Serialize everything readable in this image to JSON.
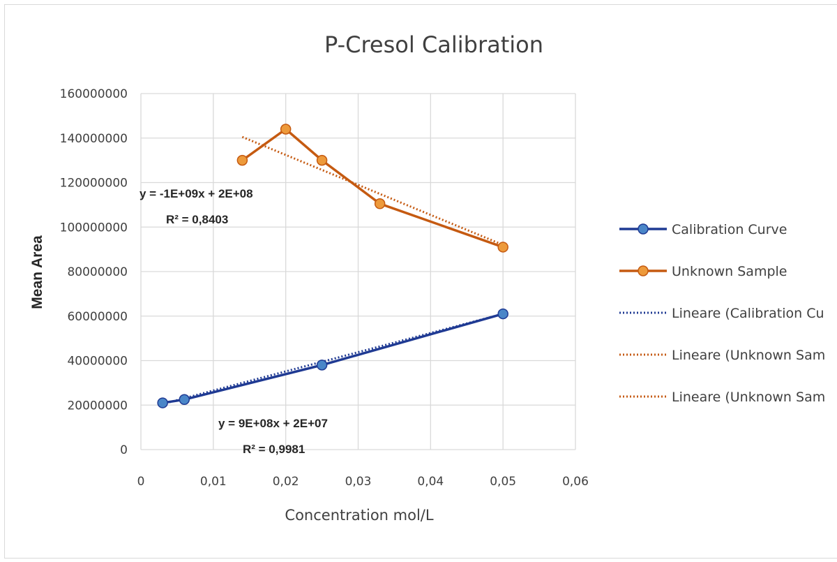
{
  "chart_data": {
    "type": "scatter",
    "title": "P-Cresol Calibration",
    "xlabel": "Concentration mol/L",
    "ylabel": "Mean Area",
    "xlim": [
      0,
      0.06
    ],
    "ylim": [
      0,
      160000000
    ],
    "x_ticks": [
      "0",
      "0,01",
      "0,02",
      "0,03",
      "0,04",
      "0,05",
      "0,06"
    ],
    "y_ticks": [
      "0",
      "20000000",
      "40000000",
      "60000000",
      "80000000",
      "100000000",
      "120000000",
      "140000000",
      "160000000"
    ],
    "grid": true,
    "legend_position": "right",
    "series": [
      {
        "name": "Calibration Curve",
        "color": "#1f3a93",
        "marker_color": "#4a86c8",
        "style": "line-markers",
        "points": [
          {
            "x": 0.003,
            "y": 21000000
          },
          {
            "x": 0.006,
            "y": 22500000
          },
          {
            "x": 0.025,
            "y": 38000000
          },
          {
            "x": 0.05,
            "y": 61000000
          }
        ]
      },
      {
        "name": "Unknown Sample",
        "color": "#c55a11",
        "marker_color": "#ed9a3b",
        "style": "line-markers",
        "points": [
          {
            "x": 0.014,
            "y": 130000000
          },
          {
            "x": 0.02,
            "y": 144000000
          },
          {
            "x": 0.025,
            "y": 130000000
          },
          {
            "x": 0.033,
            "y": 110500000
          },
          {
            "x": 0.05,
            "y": 91000000
          }
        ]
      }
    ],
    "trendlines": [
      {
        "name": "Lineare (Calibration Cu",
        "color": "#1f3a93",
        "from": {
          "x": 0.003,
          "y": 20500000
        },
        "to": {
          "x": 0.05,
          "y": 61000000
        }
      },
      {
        "name": "Lineare (Unknown Sam",
        "color": "#c55a11",
        "from": {
          "x": 0.014,
          "y": 140500000
        },
        "to": {
          "x": 0.05,
          "y": 92000000
        }
      },
      {
        "name": "Lineare (Unknown Sam",
        "color": "#c55a11",
        "from": null,
        "to": null
      }
    ],
    "annotations": [
      {
        "id": "unknown-equation",
        "text": "y = -1E+09x + 2E+08"
      },
      {
        "id": "unknown-r2",
        "text": "R² = 0,8403"
      },
      {
        "id": "calibration-equation",
        "text": "y = 9E+08x + 2E+07"
      },
      {
        "id": "calibration-r2",
        "text": "R² = 0,9981"
      }
    ]
  }
}
